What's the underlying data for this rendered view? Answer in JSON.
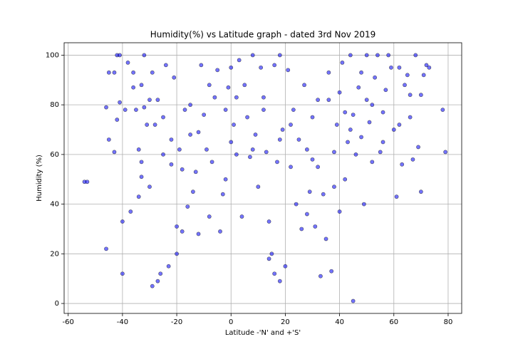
{
  "chart_data": {
    "type": "scatter",
    "title": "Humidity(%) vs Latitude graph - dated 3rd Nov 2019",
    "xlabel": "Latitude -'N' and +'S'",
    "ylabel": "Humidity (%)",
    "color": "#0000ff",
    "grid": true,
    "xlim": [
      -61.5,
      85
    ],
    "ylim": [
      -4,
      105
    ],
    "xticks": [
      -60,
      -40,
      -20,
      0,
      20,
      40,
      60,
      80
    ],
    "yticks": [
      0,
      20,
      40,
      60,
      80,
      100
    ],
    "x": [
      -54,
      -53,
      -46,
      -46,
      -45,
      -45,
      -43,
      -43,
      -42,
      -41,
      -41,
      -40,
      -40,
      -39,
      -38,
      -37,
      -36,
      -35,
      -34,
      -34,
      -33,
      -33,
      -33,
      -32,
      -32,
      -31,
      -30,
      -29,
      -29,
      -28,
      -27,
      -27,
      -26,
      -25,
      -24,
      -23,
      -22,
      -21,
      -20,
      -20,
      -19,
      -18,
      -18,
      -17,
      -16,
      -15,
      -15,
      -14,
      -13,
      -12,
      -11,
      -10,
      -9,
      -8,
      -7,
      -6,
      -5,
      -4,
      -3,
      -2,
      -1,
      0,
      0,
      1,
      2,
      3,
      4,
      5,
      6,
      7,
      8,
      9,
      10,
      11,
      12,
      13,
      14,
      15,
      16,
      17,
      18,
      18,
      19,
      20,
      21,
      22,
      23,
      24,
      25,
      26,
      27,
      28,
      29,
      30,
      31,
      32,
      33,
      34,
      35,
      36,
      37,
      38,
      39,
      40,
      40,
      41,
      42,
      43,
      44,
      45,
      45,
      46,
      47,
      48,
      49,
      50,
      50,
      51,
      52,
      53,
      54,
      55,
      56,
      57,
      58,
      59,
      60,
      61,
      62,
      63,
      64,
      65,
      66,
      67,
      68,
      69,
      70,
      70,
      71,
      72,
      73,
      78,
      79,
      -36,
      -30,
      -22,
      -8,
      2,
      12,
      22,
      32,
      42,
      52,
      62,
      48,
      38,
      28,
      18,
      8,
      -2,
      -12,
      -25,
      -42,
      14,
      16,
      30,
      36,
      44,
      56,
      66
    ],
    "values": [
      49,
      49,
      22,
      79,
      66,
      93,
      93,
      61,
      100,
      100,
      81,
      33,
      12,
      78,
      97,
      37,
      93,
      78,
      43,
      62,
      88,
      51,
      57,
      100,
      79,
      72,
      47,
      93,
      7,
      72,
      82,
      9,
      12,
      75,
      96,
      15,
      66,
      91,
      31,
      20,
      62,
      54,
      29,
      78,
      39,
      68,
      80,
      45,
      53,
      28,
      96,
      76,
      62,
      35,
      57,
      83,
      94,
      29,
      44,
      78,
      87,
      95,
      65,
      72,
      60,
      98,
      35,
      88,
      75,
      59,
      100,
      68,
      47,
      95,
      83,
      61,
      33,
      20,
      96,
      57,
      9,
      100,
      70,
      15,
      94,
      55,
      78,
      40,
      66,
      30,
      88,
      62,
      45,
      75,
      31,
      82,
      11,
      44,
      26,
      93,
      13,
      61,
      72,
      85,
      37,
      97,
      50,
      65,
      100,
      1,
      76,
      60,
      87,
      93,
      40,
      100,
      82,
      73,
      57,
      91,
      100,
      61,
      77,
      86,
      100,
      95,
      70,
      43,
      95,
      56,
      88,
      92,
      75,
      58,
      100,
      63,
      84,
      45,
      92,
      96,
      95,
      78,
      61,
      87,
      82,
      56,
      88,
      83,
      78,
      72,
      55,
      77,
      80,
      72,
      67,
      47,
      36,
      66,
      62,
      50,
      69,
      60,
      74,
      18,
      12,
      58,
      82,
      70,
      65,
      84
    ]
  }
}
